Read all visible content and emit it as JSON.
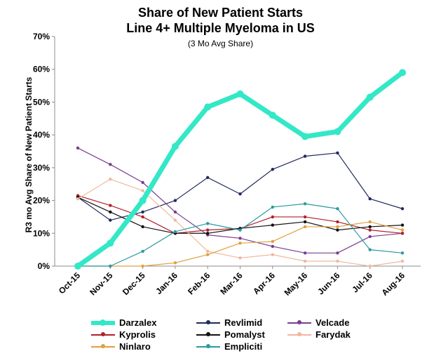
{
  "chart_data": {
    "type": "line",
    "title": "Share of New Patient Starts",
    "subtitle": "Line 4+ Multiple Myeloma in US",
    "note": "(3 Mo Avg Share)",
    "ylabel": "R3 mo Avg Share of New Patient Starts",
    "xlabel": "",
    "ylim": [
      0,
      70
    ],
    "yticks": [
      "0%",
      "10%",
      "20%",
      "30%",
      "40%",
      "50%",
      "60%",
      "70%"
    ],
    "categories": [
      "Oct-15",
      "Nov-15",
      "Dec-15",
      "Jan-16",
      "Feb-16",
      "Mar-16",
      "Apr-16",
      "May-16",
      "Jun-16",
      "Jul-16",
      "Aug-16"
    ],
    "grid": false,
    "legend_position": "bottom",
    "series": [
      {
        "name": "Darzalex",
        "color": "#33e8c6",
        "emphasis": true,
        "values": [
          0,
          7,
          20,
          36.5,
          48.5,
          52.5,
          46,
          39.5,
          41,
          51.5,
          59
        ]
      },
      {
        "name": "Revlimid",
        "color": "#1f2a5c",
        "emphasis": false,
        "values": [
          21,
          14,
          16.5,
          20,
          27,
          22,
          29.5,
          33.5,
          34.5,
          20.5,
          17.5
        ]
      },
      {
        "name": "Velcade",
        "color": "#7a3d8f",
        "emphasis": false,
        "values": [
          36,
          31,
          25.5,
          16.5,
          9.5,
          8.5,
          6,
          4,
          4,
          9,
          10
        ]
      },
      {
        "name": "Kyprolis",
        "color": "#b3202a",
        "emphasis": false,
        "values": [
          21.5,
          18.5,
          15,
          10,
          11,
          11.5,
          15,
          15,
          13.5,
          11,
          10
        ]
      },
      {
        "name": "Pomalyst",
        "color": "#111111",
        "emphasis": false,
        "values": [
          21,
          16.5,
          12,
          10,
          10,
          11.5,
          12.5,
          13.5,
          11,
          12,
          12.5
        ]
      },
      {
        "name": "Farydak",
        "color": "#f0b8a0",
        "emphasis": false,
        "values": [
          20.5,
          26.5,
          23,
          14,
          4.5,
          2.5,
          3.5,
          1.5,
          1.5,
          0,
          1.5
        ]
      },
      {
        "name": "Ninlaro",
        "color": "#e0a040",
        "emphasis": false,
        "values": [
          0,
          0,
          0,
          1,
          3.5,
          7,
          7.5,
          12,
          12,
          13.5,
          11
        ]
      },
      {
        "name": "Empliciti",
        "color": "#2a9aa0",
        "emphasis": false,
        "values": [
          0,
          0,
          4.5,
          10.5,
          13,
          11,
          18,
          19,
          17.5,
          5,
          4
        ]
      }
    ]
  }
}
